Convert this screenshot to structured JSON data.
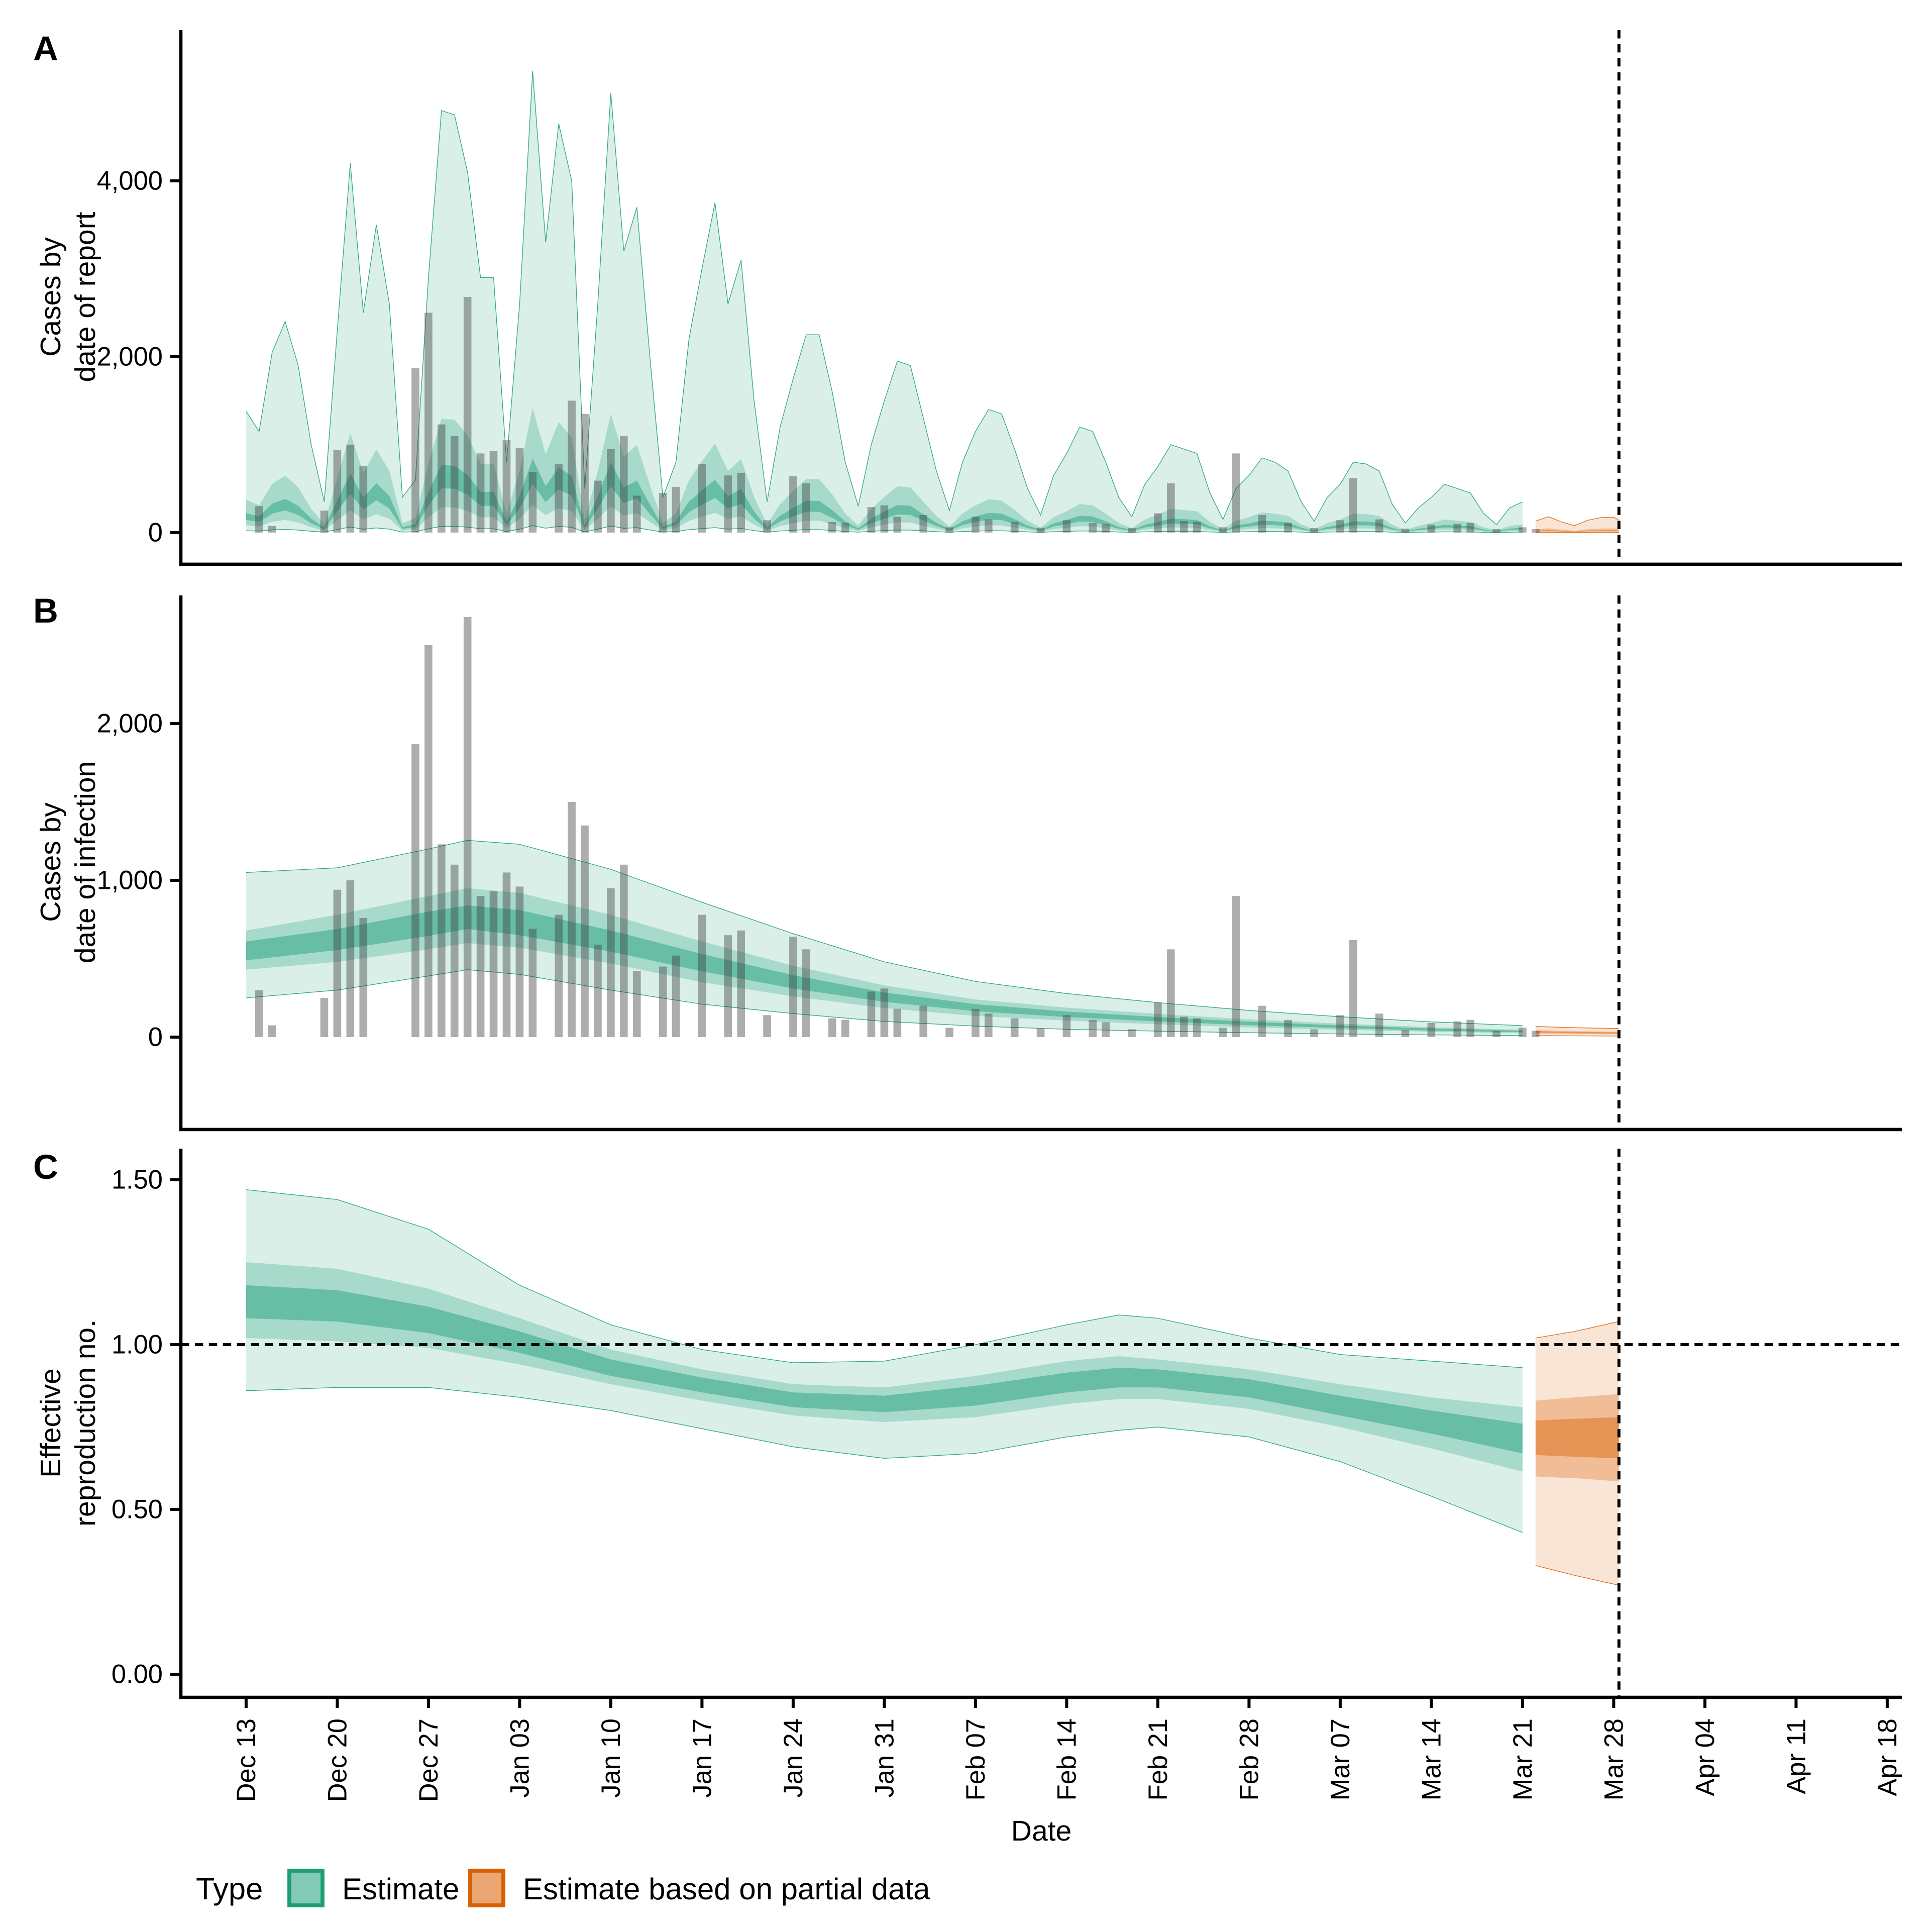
{
  "panels": [
    {
      "id": "A",
      "label": "A",
      "y_axis_title_lines": [
        "Cases by",
        "date of report"
      ],
      "y_tick_labels": [
        "0",
        "2,000",
        "4,000"
      ],
      "y_tick_values": [
        0,
        2000,
        4000
      ]
    },
    {
      "id": "B",
      "label": "B",
      "y_axis_title_lines": [
        "Cases by",
        "date of infection"
      ],
      "y_tick_labels": [
        "0",
        "1,000",
        "2,000"
      ],
      "y_tick_values": [
        0,
        1000,
        2000
      ]
    },
    {
      "id": "C",
      "label": "C",
      "y_axis_title_lines": [
        "Effective",
        "reproduction no."
      ],
      "y_tick_labels": [
        "0.00",
        "0.50",
        "1.00",
        "1.50"
      ],
      "y_tick_values": [
        0,
        0.5,
        1,
        1.5
      ]
    }
  ],
  "x_axis": {
    "title": "Date",
    "tick_labels": [
      "Dec 13",
      "Dec 20",
      "Dec 27",
      "Jan 03",
      "Jan 10",
      "Jan 17",
      "Jan 24",
      "Jan 31",
      "Feb 07",
      "Feb 14",
      "Feb 21",
      "Feb 28",
      "Mar 07",
      "Mar 14",
      "Mar 21",
      "Mar 28",
      "Apr 04",
      "Apr 11",
      "Apr 18"
    ],
    "tick_days": [
      0,
      7,
      14,
      21,
      28,
      35,
      42,
      49,
      56,
      63,
      70,
      77,
      84,
      91,
      98,
      105,
      112,
      119,
      126
    ]
  },
  "legend": {
    "title": "Type",
    "items": [
      {
        "label": "Estimate",
        "color": "#1B9E77"
      },
      {
        "label": "Estimate based on partial data",
        "color": "#D95F02"
      }
    ]
  },
  "colors": {
    "estimate_base": "#1B9E77",
    "partial_base": "#D95F02",
    "estimate_band_alphas": [
      0.17,
      0.26,
      0.46
    ],
    "partial_band_alphas": [
      0.16,
      0.3,
      0.43
    ],
    "bar_fill": "rgba(60,60,60,0.42)",
    "axis": "#000000",
    "dashed_line": "#000000",
    "background": "#FFFFFF",
    "legend_swatch_fill_opacity": 0.55
  },
  "reference_lines": {
    "rt_threshold_value": 1.0,
    "estimation_date_day": 105.4
  },
  "chart_data": [
    {
      "type": "area+bar",
      "panel": "A",
      "title": "Cases by date of report",
      "x_unit": "days since Dec 13",
      "ylabel": "Cases by date of report",
      "ylim": [
        0,
        5700
      ],
      "quantile_bands": [
        90,
        50,
        20
      ],
      "estimate": {
        "days_start": 0,
        "upper90": [
          1380,
          1150,
          2050,
          2400,
          1900,
          1000,
          350,
          2300,
          4200,
          2500,
          3500,
          2600,
          400,
          600,
          2900,
          4800,
          4750,
          4100,
          2900,
          2900,
          800,
          2600,
          5250,
          3300,
          4650,
          4000,
          500,
          2600,
          5000,
          3200,
          3700,
          2000,
          400,
          800,
          2200,
          3000,
          3750,
          2600,
          3100,
          1500,
          350,
          1200,
          1750,
          2250,
          2250,
          1600,
          800,
          300,
          1000,
          1500,
          1950,
          1900,
          1300,
          700,
          250,
          800,
          1150,
          1400,
          1350,
          950,
          500,
          200,
          650,
          900,
          1200,
          1150,
          800,
          400,
          180,
          550,
          750,
          1000,
          950,
          900,
          450,
          150,
          500,
          650,
          850,
          800,
          700,
          350,
          130,
          400,
          550,
          800,
          780,
          700,
          320,
          110,
          280,
          400,
          550,
          500,
          450,
          220,
          90,
          280,
          350
        ],
        "band_ratios": {
          "upper50": 0.27,
          "upper20": 0.16,
          "lower20": 0.105,
          "lower50": 0.06,
          "lower90": 0.015
        }
      },
      "partial": {
        "points_upper90": [
          [
            99,
            130
          ],
          [
            100,
            180
          ],
          [
            101,
            120
          ],
          [
            102,
            80
          ],
          [
            103,
            140
          ],
          [
            104,
            170
          ],
          [
            105,
            175
          ],
          [
            105.4,
            140
          ]
        ],
        "band_ratios": {
          "upper50": 0.27,
          "upper20": 0.16,
          "lower20": 0.105,
          "lower50": 0.06,
          "lower90": 0.015
        }
      },
      "reported_cases": {
        "unit": "cases per day",
        "points": [
          [
            1,
            300
          ],
          [
            2,
            75
          ],
          [
            6,
            250
          ],
          [
            7,
            940
          ],
          [
            8,
            1000
          ],
          [
            9,
            760
          ],
          [
            13,
            1870
          ],
          [
            14,
            2500
          ],
          [
            15,
            1230
          ],
          [
            16,
            1100
          ],
          [
            17,
            2680
          ],
          [
            18,
            900
          ],
          [
            19,
            930
          ],
          [
            20,
            1050
          ],
          [
            21,
            960
          ],
          [
            22,
            690
          ],
          [
            24,
            780
          ],
          [
            25,
            1500
          ],
          [
            26,
            1350
          ],
          [
            27,
            590
          ],
          [
            28,
            950
          ],
          [
            29,
            1100
          ],
          [
            30,
            420
          ],
          [
            32,
            450
          ],
          [
            33,
            520
          ],
          [
            35,
            780
          ],
          [
            37,
            650
          ],
          [
            38,
            680
          ],
          [
            40,
            140
          ],
          [
            42,
            640
          ],
          [
            43,
            560
          ],
          [
            45,
            120
          ],
          [
            46,
            110
          ],
          [
            48,
            290
          ],
          [
            49,
            310
          ],
          [
            50,
            180
          ],
          [
            52,
            200
          ],
          [
            54,
            60
          ],
          [
            56,
            180
          ],
          [
            57,
            150
          ],
          [
            59,
            120
          ],
          [
            61,
            55
          ],
          [
            63,
            140
          ],
          [
            65,
            110
          ],
          [
            66,
            95
          ],
          [
            68,
            50
          ],
          [
            70,
            220
          ],
          [
            71,
            560
          ],
          [
            72,
            130
          ],
          [
            73,
            120
          ],
          [
            75,
            60
          ],
          [
            76,
            900
          ],
          [
            78,
            200
          ],
          [
            80,
            110
          ],
          [
            82,
            50
          ],
          [
            84,
            140
          ],
          [
            85,
            620
          ],
          [
            87,
            150
          ],
          [
            89,
            45
          ],
          [
            91,
            90
          ],
          [
            93,
            100
          ],
          [
            94,
            110
          ],
          [
            96,
            40
          ],
          [
            98,
            60
          ],
          [
            99,
            40
          ]
        ]
      }
    },
    {
      "type": "area+bar",
      "panel": "B",
      "title": "Cases by date of infection",
      "x_unit": "days since Dec 13",
      "ylabel": "Cases by date of infection",
      "ylim": [
        0,
        2817
      ],
      "quantile_bands": [
        90,
        50,
        20
      ],
      "quantiles_order": [
        "lower90",
        "lower50",
        "lower20",
        "median",
        "upper20",
        "upper50",
        "upper90"
      ],
      "estimate_knots": [
        [
          0,
          250,
          430,
          490,
          545,
          610,
          680,
          1050
        ],
        [
          7,
          300,
          480,
          555,
          620,
          690,
          780,
          1080
        ],
        [
          14,
          390,
          560,
          645,
          720,
          800,
          900,
          1200
        ],
        [
          17,
          430,
          600,
          690,
          760,
          840,
          950,
          1255
        ],
        [
          21,
          400,
          570,
          650,
          730,
          810,
          920,
          1230
        ],
        [
          28,
          300,
          470,
          545,
          610,
          680,
          780,
          1070
        ],
        [
          35,
          210,
          350,
          420,
          470,
          530,
          610,
          860
        ],
        [
          42,
          150,
          260,
          310,
          350,
          395,
          455,
          660
        ],
        [
          49,
          100,
          185,
          225,
          255,
          285,
          330,
          480
        ],
        [
          56,
          70,
          135,
          165,
          185,
          210,
          240,
          355
        ],
        [
          63,
          50,
          105,
          128,
          145,
          163,
          188,
          278
        ],
        [
          70,
          38,
          82,
          100,
          113,
          128,
          148,
          220
        ],
        [
          77,
          28,
          62,
          76,
          87,
          98,
          113,
          170
        ],
        [
          84,
          20,
          47,
          58,
          66,
          75,
          86,
          130
        ],
        [
          91,
          14,
          34,
          42,
          48,
          55,
          63,
          97
        ],
        [
          98,
          10,
          25,
          31,
          36,
          41,
          47,
          73
        ]
      ],
      "partial_knots": [
        [
          99,
          9,
          23,
          29,
          33,
          38,
          44,
          68
        ],
        [
          102,
          8,
          20,
          25,
          29,
          33,
          38,
          60
        ],
        [
          105.4,
          7,
          18,
          22,
          26,
          30,
          35,
          55
        ]
      ],
      "bars": "same as panel A reported_cases"
    },
    {
      "type": "area",
      "panel": "C",
      "title": "Effective reproduction no.",
      "x_unit": "days since Dec 13",
      "ylabel": "Effective reproduction no.",
      "ylim": [
        0,
        1.56
      ],
      "threshold": 1.0,
      "quantile_bands": [
        90,
        50,
        20
      ],
      "quantiles_order": [
        "lower90",
        "lower50",
        "lower20",
        "median",
        "upper20",
        "upper50",
        "upper90"
      ],
      "estimate_knots": [
        [
          0,
          0.86,
          1.02,
          1.08,
          1.13,
          1.18,
          1.25,
          1.47
        ],
        [
          7,
          0.87,
          1.01,
          1.07,
          1.115,
          1.165,
          1.23,
          1.44
        ],
        [
          14,
          0.87,
          0.99,
          1.035,
          1.075,
          1.115,
          1.17,
          1.35
        ],
        [
          21,
          0.84,
          0.94,
          0.975,
          1.005,
          1.04,
          1.08,
          1.18
        ],
        [
          28,
          0.8,
          0.88,
          0.905,
          0.93,
          0.955,
          0.985,
          1.06
        ],
        [
          35,
          0.745,
          0.83,
          0.855,
          0.875,
          0.9,
          0.925,
          0.985
        ],
        [
          42,
          0.69,
          0.785,
          0.81,
          0.83,
          0.855,
          0.88,
          0.945
        ],
        [
          49,
          0.655,
          0.765,
          0.795,
          0.82,
          0.845,
          0.87,
          0.95
        ],
        [
          56,
          0.67,
          0.78,
          0.815,
          0.845,
          0.875,
          0.905,
          1.0
        ],
        [
          63,
          0.72,
          0.82,
          0.855,
          0.885,
          0.915,
          0.95,
          1.06
        ],
        [
          67,
          0.74,
          0.835,
          0.87,
          0.9,
          0.93,
          0.965,
          1.09
        ],
        [
          70,
          0.75,
          0.835,
          0.87,
          0.9,
          0.925,
          0.955,
          1.08
        ],
        [
          77,
          0.72,
          0.805,
          0.84,
          0.865,
          0.895,
          0.925,
          1.02
        ],
        [
          84,
          0.645,
          0.75,
          0.785,
          0.815,
          0.845,
          0.88,
          0.97
        ],
        [
          91,
          0.54,
          0.685,
          0.73,
          0.765,
          0.8,
          0.84,
          0.95
        ],
        [
          98,
          0.43,
          0.615,
          0.67,
          0.715,
          0.76,
          0.81,
          0.93
        ]
      ],
      "partial_knots": [
        [
          99,
          0.33,
          0.6,
          0.665,
          0.715,
          0.77,
          0.83,
          1.02
        ],
        [
          102,
          0.3,
          0.595,
          0.66,
          0.715,
          0.775,
          0.84,
          1.04
        ],
        [
          105.4,
          0.27,
          0.585,
          0.655,
          0.715,
          0.78,
          0.85,
          1.07
        ]
      ]
    }
  ]
}
